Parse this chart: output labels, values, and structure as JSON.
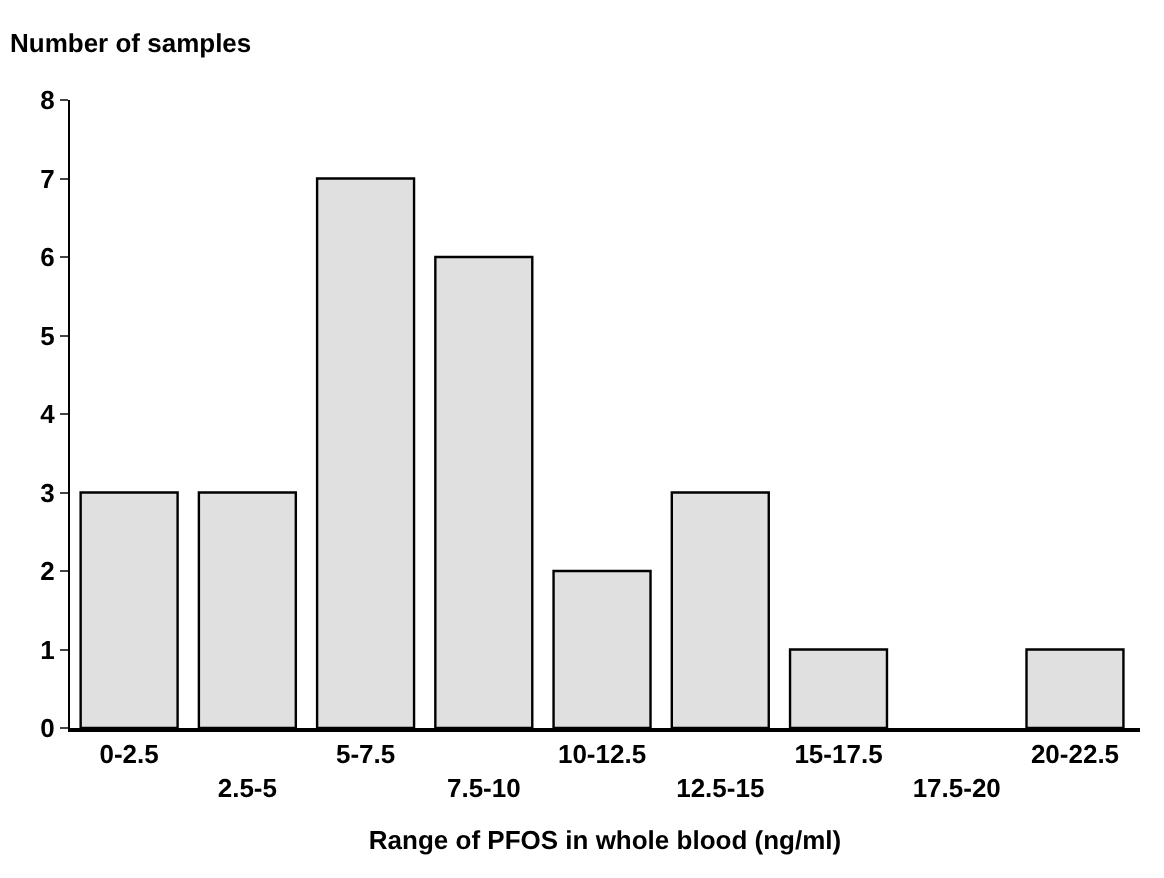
{
  "chart_data": {
    "type": "bar",
    "ylabel": "Number of samples",
    "xlabel": "Range of PFOS in whole blood (ng/ml)",
    "categories": [
      "0-2.5",
      "2.5-5",
      "5-7.5",
      "7.5-10",
      "10-12.5",
      "12.5-15",
      "15-17.5",
      "17.5-20",
      "20-22.5"
    ],
    "values": [
      3,
      3,
      7,
      6,
      2,
      3,
      1,
      0,
      1
    ],
    "color": "#e0e0e0",
    "ylim": [
      0,
      8
    ],
    "yticks": [
      0,
      1,
      2,
      3,
      4,
      5,
      6,
      7,
      8
    ]
  }
}
